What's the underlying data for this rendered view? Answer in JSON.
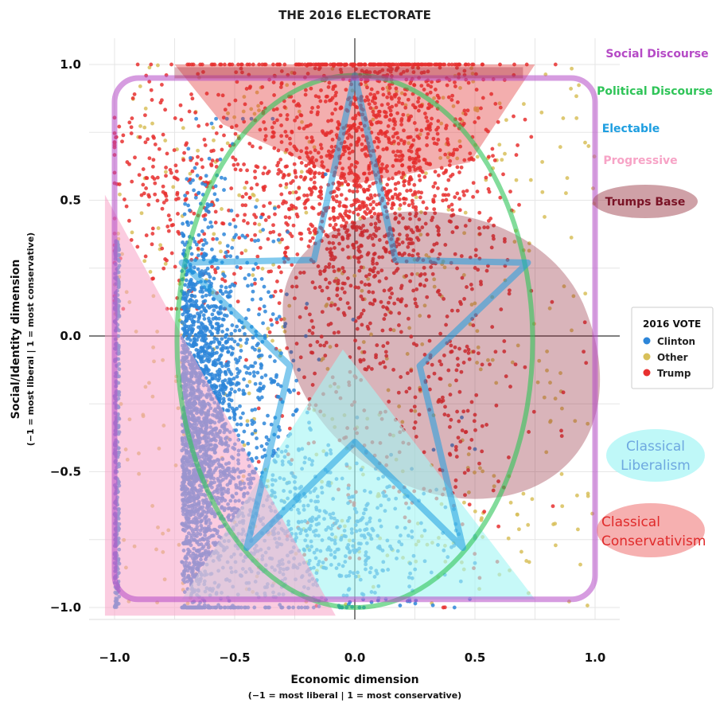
{
  "chart_data": {
    "type": "scatter",
    "title": "THE 2016 ELECTORATE",
    "xlabel": "Economic dimension",
    "xlabel_sub": "(−1 = most liberal | 1 = most conservative)",
    "ylabel": "Social/Identity dimension",
    "ylabel_sub": "(−1 = most liberal | 1 = most conservative)",
    "xlim": [
      -1.1,
      1.1
    ],
    "ylim": [
      -1.05,
      1.08
    ],
    "x_ticks": [
      -1.0,
      -0.5,
      0.0,
      0.5,
      1.0
    ],
    "x_tick_labels": [
      "−1.0",
      "−0.5",
      "0.0",
      "0.5",
      "1.0"
    ],
    "y_ticks": [
      1.0,
      0.5,
      0.0,
      -0.5,
      -1.0
    ],
    "y_tick_labels": [
      "1.0",
      "0.5",
      "0.0",
      "−0.5",
      "−1.0"
    ],
    "grid": true,
    "legend": {
      "title": "2016 VOTE",
      "placement": "right",
      "entries": [
        {
          "name": "Clinton",
          "color": "#2d86d9"
        },
        {
          "name": "Other",
          "color": "#d8c05a"
        },
        {
          "name": "Trump",
          "color": "#e8302f"
        }
      ]
    },
    "series": [
      {
        "name": "Clinton",
        "color": "#2d86d9",
        "center": [
          -0.72,
          -0.35
        ],
        "spread": [
          0.22,
          0.38
        ]
      },
      {
        "name": "Other",
        "color": "#d8c05a",
        "center": [
          -0.1,
          0.2
        ],
        "spread": [
          0.45,
          0.55
        ]
      },
      {
        "name": "Trump",
        "color": "#e8302f",
        "center": [
          0.05,
          0.62
        ],
        "spread": [
          0.25,
          0.3
        ]
      }
    ],
    "annotations": [
      {
        "label": "Social Discourse",
        "color": "#b54ac6",
        "shape": "rounded-rectangle",
        "x_range": [
          -1.0,
          1.0
        ],
        "y_range": [
          -0.97,
          0.95
        ]
      },
      {
        "label": "Political Discourse",
        "color": "#2fc458",
        "shape": "ellipse",
        "center": [
          0.0,
          -0.02
        ],
        "radii": [
          0.74,
          0.98
        ]
      },
      {
        "label": "Electable",
        "color": "#1e9ee0",
        "shape": "star",
        "center": [
          0.0,
          0.1
        ]
      },
      {
        "label": "Progressive",
        "color": "#f7a3c6",
        "shape": "triangle"
      },
      {
        "label": "Trumps Base",
        "color": "#8b1a2e",
        "shape": "blob",
        "center": [
          0.58,
          -0.1
        ]
      },
      {
        "label": "Classical Liberalism",
        "color": "#6ea8e0",
        "shape": "triangle"
      },
      {
        "label": "Classical Conservativism",
        "color": "#e02a2a",
        "shape": "triangle"
      }
    ]
  }
}
